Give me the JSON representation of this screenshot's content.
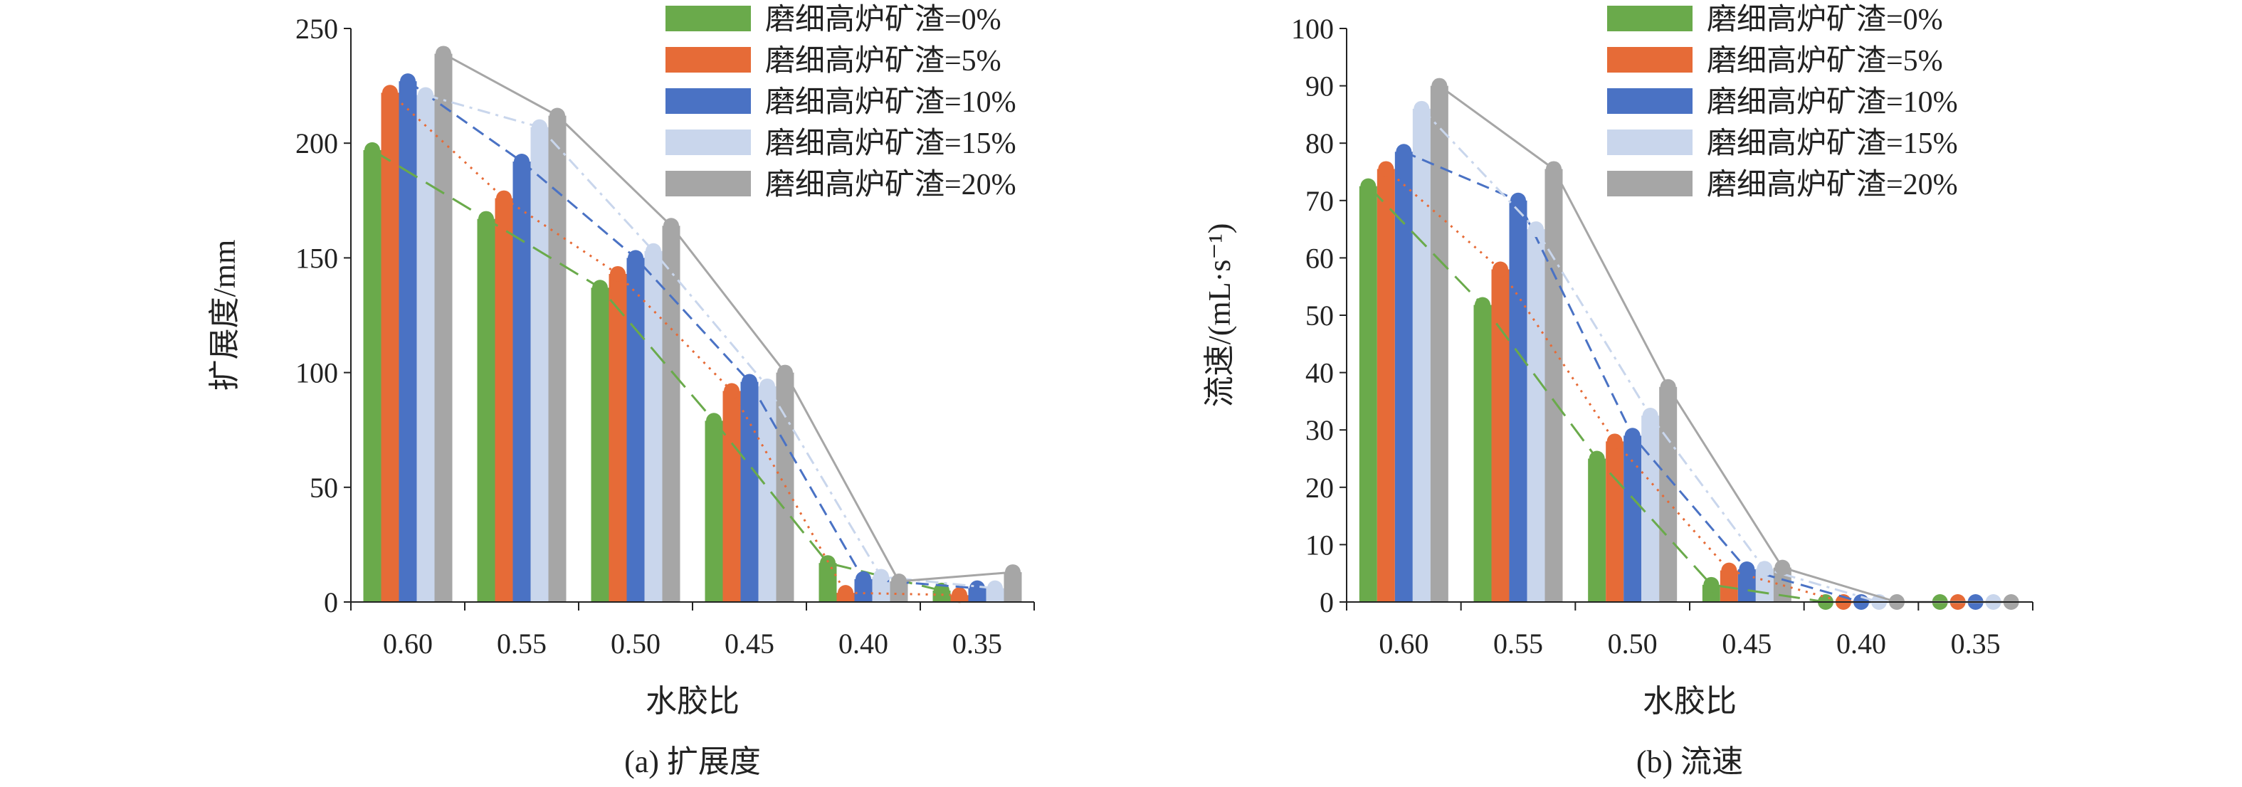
{
  "chart_data": [
    {
      "type": "bar",
      "caption": "(a) 扩展度",
      "xlabel": "水胶比",
      "ylabel": "扩展度/mm",
      "ylim": [
        0,
        250
      ],
      "yticks": [
        0,
        50,
        100,
        150,
        200,
        250
      ],
      "categories": [
        "0.60",
        "0.55",
        "0.50",
        "0.45",
        "0.40",
        "0.35"
      ],
      "legend_position": "top-right",
      "series": [
        {
          "name": "磨细高炉矿渣=0%",
          "color": "#6aaa4b",
          "line_style": "dash-long",
          "values": [
            197,
            167,
            137,
            79,
            17,
            5
          ]
        },
        {
          "name": "磨细高炉矿渣=5%",
          "color": "#e66b37",
          "line_style": "dot",
          "values": [
            222,
            176,
            143,
            92,
            4,
            3
          ]
        },
        {
          "name": "磨细高炉矿渣=10%",
          "color": "#4a72c4",
          "line_style": "dash",
          "values": [
            227,
            192,
            150,
            96,
            10,
            6
          ]
        },
        {
          "name": "磨细高炉矿渣=15%",
          "color": "#c9d6ec",
          "line_style": "dash-dot",
          "values": [
            221,
            207,
            153,
            94,
            11,
            6
          ]
        },
        {
          "name": "磨细高炉矿渣=20%",
          "color": "#a6a6a6",
          "line_style": "solid",
          "values": [
            239,
            212,
            164,
            100,
            9,
            13
          ]
        }
      ]
    },
    {
      "type": "bar",
      "caption": "(b) 流速",
      "xlabel": "水胶比",
      "ylabel": "流速/(mL·s⁻¹)",
      "ylim": [
        0,
        100
      ],
      "yticks": [
        0,
        10,
        20,
        30,
        40,
        50,
        60,
        70,
        80,
        90,
        100
      ],
      "categories": [
        "0.60",
        "0.55",
        "0.50",
        "0.45",
        "0.40",
        "0.35"
      ],
      "legend_position": "top-right",
      "series": [
        {
          "name": "磨细高炉矿渣=0%",
          "color": "#6aaa4b",
          "line_style": "dash-long",
          "values": [
            72.5,
            51.8,
            25,
            3,
            0,
            0
          ]
        },
        {
          "name": "磨细高炉矿渣=5%",
          "color": "#e66b37",
          "line_style": "dot",
          "values": [
            75.5,
            58,
            28,
            5.5,
            0,
            0
          ]
        },
        {
          "name": "磨细高炉矿渣=10%",
          "color": "#4a72c4",
          "line_style": "dash",
          "values": [
            78.5,
            70,
            29,
            5.7,
            0,
            0
          ]
        },
        {
          "name": "磨细高炉矿渣=15%",
          "color": "#c9d6ec",
          "line_style": "dash-dot",
          "values": [
            86,
            65,
            32.5,
            5.8,
            0,
            0
          ]
        },
        {
          "name": "磨细高炉矿渣=20%",
          "color": "#a6a6a6",
          "line_style": "solid",
          "values": [
            90,
            75.5,
            37.5,
            6,
            0,
            0
          ]
        }
      ]
    }
  ]
}
